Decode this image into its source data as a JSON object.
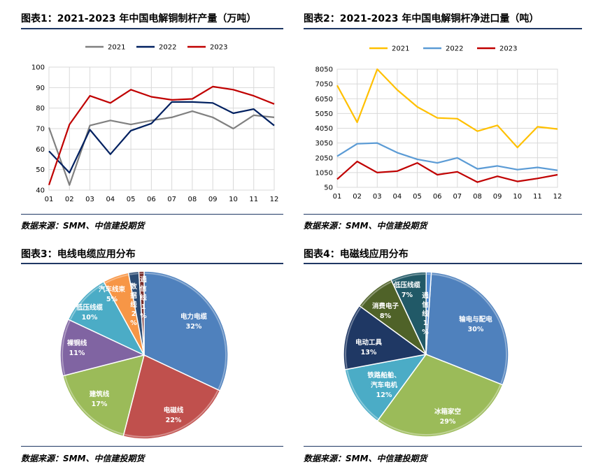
{
  "charts": [
    {
      "title": "图表1：2021-2023 年中国电解铜制杆产量（万吨）",
      "source": "数据来源：SMM、中信建投期货",
      "type": "line",
      "categories": [
        "01",
        "02",
        "03",
        "04",
        "05",
        "06",
        "07",
        "08",
        "09",
        "10",
        "11",
        "12"
      ],
      "ylim": [
        40,
        100
      ],
      "yticks": [
        40,
        50,
        60,
        70,
        80,
        90,
        100
      ],
      "series": [
        {
          "name": "2021",
          "color": "#808080",
          "values": [
            70.5,
            42.5,
            71.5,
            74,
            72,
            74,
            75.5,
            78.5,
            75.5,
            70,
            76.5,
            75.5
          ]
        },
        {
          "name": "2022",
          "color": "#002060",
          "values": [
            59,
            48.5,
            69.5,
            57.5,
            69,
            72.5,
            83,
            83,
            82.5,
            77.5,
            79.5,
            71.5
          ]
        },
        {
          "name": "2023",
          "color": "#c00000",
          "values": [
            42.5,
            72,
            86,
            82.5,
            89,
            85.5,
            84,
            84.5,
            90.5,
            89,
            86,
            82
          ]
        }
      ]
    },
    {
      "title": "图表2：2021-2023 年中国电解铜杆净进口量（吨）",
      "source": "数据来源：SMM、中信建投期货",
      "type": "line",
      "categories": [
        "01",
        "02",
        "03",
        "04",
        "05",
        "06",
        "07",
        "08",
        "09",
        "10",
        "11",
        "12"
      ],
      "ylim": [
        50,
        8050
      ],
      "yticks": [
        50,
        1050,
        2050,
        3050,
        4050,
        5050,
        6050,
        7050,
        8050
      ],
      "series": [
        {
          "name": "2021",
          "color": "#ffc000",
          "values": [
            6950,
            4450,
            8050,
            6650,
            5500,
            4750,
            4700,
            3850,
            4250,
            2750,
            4150,
            4000
          ]
        },
        {
          "name": "2022",
          "color": "#5b9bd5",
          "values": [
            2150,
            3000,
            3050,
            2400,
            1950,
            1700,
            2050,
            1300,
            1500,
            1250,
            1400,
            1200
          ]
        },
        {
          "name": "2023",
          "color": "#c00000",
          "values": [
            600,
            1800,
            1050,
            1150,
            1700,
            900,
            1100,
            400,
            800,
            450,
            650,
            900
          ]
        }
      ]
    },
    {
      "title": "图表3：电线电缆应用分布",
      "source": "数据来源：SMM、中信建投期货",
      "type": "pie",
      "slices": [
        {
          "name": "电力电缆",
          "percent": 32,
          "color": "#4f81bd",
          "label": "电力电缆",
          "pct_label": "32%"
        },
        {
          "name": "电磁线",
          "percent": 22,
          "color": "#c0504d",
          "label": "电磁线",
          "pct_label": "22%"
        },
        {
          "name": "建筑线",
          "percent": 17,
          "color": "#9bbb59",
          "label": "建筑线",
          "pct_label": "17%"
        },
        {
          "name": "裸铜线",
          "percent": 11,
          "color": "#8064a2",
          "label": "裸铜线",
          "pct_label": "11%"
        },
        {
          "name": "低压线缆",
          "percent": 10,
          "color": "#4bacc6",
          "label": "低压线缆",
          "pct_label": "10%"
        },
        {
          "name": "汽车线束",
          "percent": 5,
          "color": "#f79646",
          "label": "汽车线束",
          "pct_label": "5%"
        },
        {
          "name": "数据线",
          "percent": 2,
          "color": "#2c4d75",
          "label": "数据线",
          "pct_label": "2%"
        },
        {
          "name": "通信线",
          "percent": 1,
          "color": "#772c2a",
          "label": "通信线",
          "pct_label": "1%"
        }
      ]
    },
    {
      "title": "图表4：电磁线应用分布",
      "source": "数据来源：SMM、中信建投期货",
      "type": "pie",
      "slices": [
        {
          "name": "输电与配电",
          "percent": 30,
          "color": "#4f81bd",
          "label": "输电与配电",
          "pct_label": "30%"
        },
        {
          "name": "冰箱家空",
          "percent": 29,
          "color": "#9bbb59",
          "label": "冰箱家空",
          "pct_label": "29%"
        },
        {
          "name": "铁路船舶、汽车电机",
          "percent": 12,
          "color": "#4bacc6",
          "label": "铁路船舶、汽车电机",
          "pct_label": "12%"
        },
        {
          "name": "电动工具",
          "percent": 13,
          "color": "#1f3864",
          "label": "电动工具",
          "pct_label": "13%"
        },
        {
          "name": "消费电子",
          "percent": 8,
          "color": "#4f6228",
          "label": "消费电子",
          "pct_label": "8%"
        },
        {
          "name": "低压线缆",
          "percent": 7,
          "color": "#215967",
          "label": "低压线缆",
          "pct_label": "7%"
        },
        {
          "name": "通信线",
          "percent": 1,
          "color": "#538dd5",
          "label": "通信线",
          "pct_label": "1%"
        }
      ]
    }
  ]
}
